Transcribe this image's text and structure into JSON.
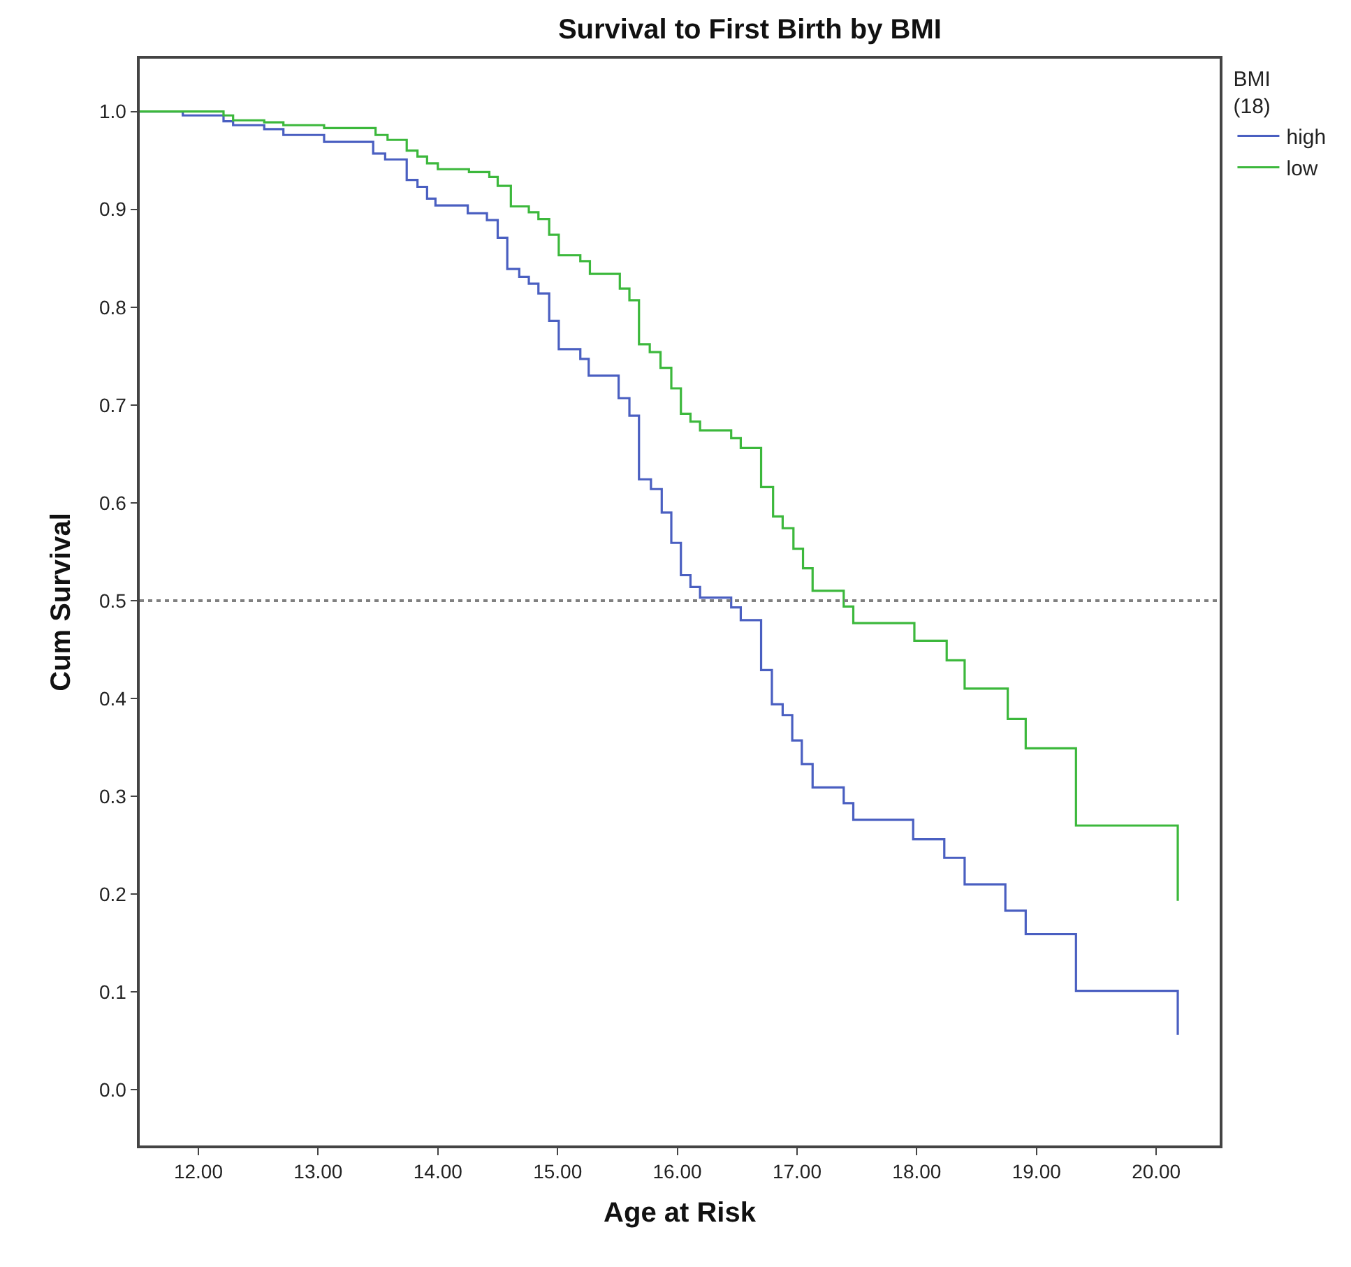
{
  "chart_data": {
    "type": "step",
    "title": "Survival to First Birth by BMI",
    "xlabel": "Age at Risk",
    "ylabel": "Cum Survival",
    "legend_title": "BMI\n(18)",
    "legend": "right",
    "xlim": [
      11.51,
      20.53
    ],
    "ylim": [
      -0.057,
      1.054
    ],
    "xticks": [
      {
        "value": 12,
        "label": "12.00"
      },
      {
        "value": 13,
        "label": "13.00"
      },
      {
        "value": 14,
        "label": "14.00"
      },
      {
        "value": 15,
        "label": "15.00"
      },
      {
        "value": 16,
        "label": "16.00"
      },
      {
        "value": 17,
        "label": "17.00"
      },
      {
        "value": 18,
        "label": "18.00"
      },
      {
        "value": 19,
        "label": "19.00"
      },
      {
        "value": 20,
        "label": "20.00"
      }
    ],
    "yticks": [
      {
        "value": 0,
        "label": "0.0"
      },
      {
        "value": 0.1,
        "label": "0.1"
      },
      {
        "value": 0.2,
        "label": "0.2"
      },
      {
        "value": 0.3,
        "label": "0.3"
      },
      {
        "value": 0.4,
        "label": "0.4"
      },
      {
        "value": 0.5,
        "label": "0.5"
      },
      {
        "value": 0.6,
        "label": "0.6"
      },
      {
        "value": 0.7,
        "label": "0.7"
      },
      {
        "value": 0.8,
        "label": "0.8"
      },
      {
        "value": 0.9,
        "label": "0.9"
      },
      {
        "value": 1,
        "label": "1.0"
      }
    ],
    "marker": "none",
    "line_style": "solid",
    "ref_lines": [
      {
        "axis": "y",
        "value": 0.5,
        "label": null,
        "color": "#808080",
        "line_style": "dotted"
      }
    ],
    "series": [
      {
        "name": "high",
        "color": "#4a5fc1",
        "x": [
          11.51,
          11.87,
          12.21,
          12.29,
          12.55,
          12.71,
          13.05,
          13.46,
          13.56,
          13.74,
          13.83,
          13.91,
          13.98,
          14.25,
          14.41,
          14.5,
          14.58,
          14.68,
          14.76,
          14.84,
          14.93,
          15.01,
          15.19,
          15.26,
          15.51,
          15.6,
          15.68,
          15.78,
          15.87,
          15.95,
          16.03,
          16.11,
          16.19,
          16.45,
          16.53,
          16.7,
          16.79,
          16.88,
          16.96,
          17.04,
          17.13,
          17.39,
          17.47,
          17.97,
          18.23,
          18.4,
          18.74,
          18.91,
          19.33,
          20.18
        ],
        "values": [
          1.0,
          0.996,
          0.99,
          0.986,
          0.982,
          0.976,
          0.969,
          0.957,
          0.951,
          0.93,
          0.923,
          0.911,
          0.904,
          0.896,
          0.889,
          0.871,
          0.839,
          0.831,
          0.824,
          0.814,
          0.786,
          0.757,
          0.747,
          0.73,
          0.707,
          0.689,
          0.624,
          0.614,
          0.59,
          0.559,
          0.526,
          0.514,
          0.503,
          0.493,
          0.48,
          0.429,
          0.394,
          0.383,
          0.357,
          0.333,
          0.309,
          0.293,
          0.276,
          0.256,
          0.237,
          0.21,
          0.183,
          0.159,
          0.101,
          0.056
        ]
      },
      {
        "name": "low",
        "color": "#3cb83c",
        "x": [
          11.51,
          12.21,
          12.29,
          12.55,
          12.71,
          13.05,
          13.48,
          13.58,
          13.74,
          13.83,
          13.91,
          14.0,
          14.26,
          14.43,
          14.5,
          14.61,
          14.76,
          14.84,
          14.93,
          15.01,
          15.19,
          15.27,
          15.52,
          15.6,
          15.68,
          15.77,
          15.86,
          15.95,
          16.03,
          16.11,
          16.19,
          16.45,
          16.53,
          16.7,
          16.8,
          16.88,
          16.97,
          17.05,
          17.13,
          17.39,
          17.47,
          17.98,
          18.25,
          18.4,
          18.76,
          18.91,
          19.33,
          20.18
        ],
        "values": [
          1.0,
          0.996,
          0.991,
          0.989,
          0.986,
          0.983,
          0.976,
          0.971,
          0.96,
          0.954,
          0.947,
          0.941,
          0.938,
          0.933,
          0.924,
          0.903,
          0.897,
          0.89,
          0.874,
          0.853,
          0.847,
          0.834,
          0.819,
          0.807,
          0.762,
          0.754,
          0.738,
          0.717,
          0.691,
          0.683,
          0.674,
          0.666,
          0.656,
          0.616,
          0.586,
          0.574,
          0.553,
          0.533,
          0.51,
          0.494,
          0.477,
          0.459,
          0.439,
          0.41,
          0.379,
          0.349,
          0.27,
          0.193
        ]
      }
    ]
  }
}
